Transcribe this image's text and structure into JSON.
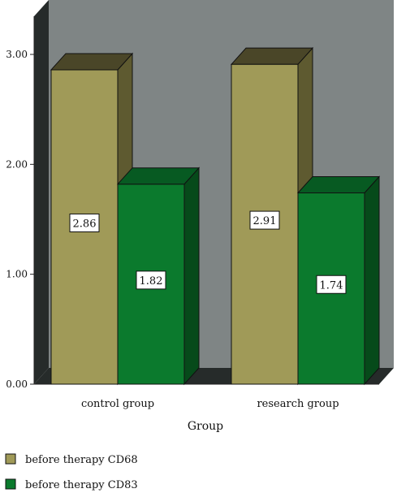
{
  "chart_data": {
    "type": "bar",
    "title": "",
    "xlabel": "Group",
    "ylabel": "",
    "categories": [
      "control group",
      "research group"
    ],
    "series": [
      {
        "name": "before therapy CD68",
        "values": [
          2.86,
          2.91
        ],
        "labels": [
          "2.86",
          "2.91"
        ],
        "color": "#a09a58",
        "side_color": "#5e5a30",
        "top_color": "#4a4628"
      },
      {
        "name": "before therapy CD83",
        "values": [
          1.82,
          1.74
        ],
        "labels": [
          "1.82",
          "1.74"
        ],
        "color": "#0b7a2d",
        "side_color": "#064a1a",
        "top_color": "#075a22"
      }
    ],
    "ylim": [
      0,
      3
    ],
    "yticks": [
      0,
      1,
      2,
      3
    ],
    "ytick_labels": [
      "0.00",
      "1.00",
      "2.00",
      "3.00"
    ],
    "grid": false,
    "legend_position": "bottom-left",
    "background_color": "#7f8585",
    "depth_color": "#262b2a"
  }
}
